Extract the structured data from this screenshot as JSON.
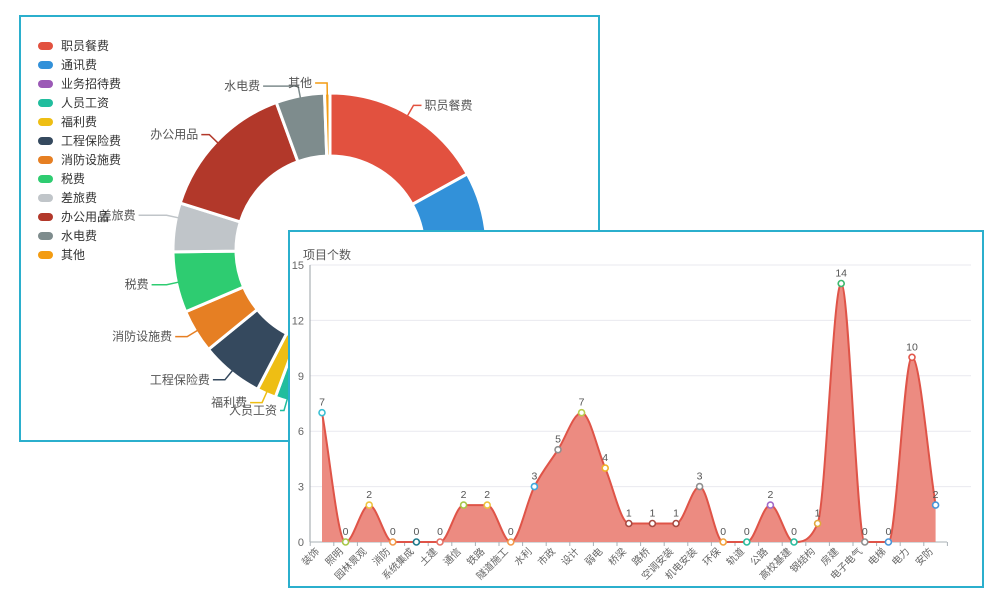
{
  "ui": {
    "background": "#ffffff",
    "panel_border_color": "#2bafcd",
    "panel_background": "#ffffff"
  },
  "back_panel": {
    "legend": [
      {
        "label": "职员餐费",
        "color": "#e2513f"
      },
      {
        "label": "通讯费",
        "color": "#3291d9"
      },
      {
        "label": "业务招待费",
        "color": "#9b59b6"
      },
      {
        "label": "人员工资",
        "color": "#21bd9e"
      },
      {
        "label": "福利费",
        "color": "#eebe14"
      },
      {
        "label": "工程保险费",
        "color": "#35495e"
      },
      {
        "label": "消防设施费",
        "color": "#e67f23"
      },
      {
        "label": "税费",
        "color": "#2ecc71"
      },
      {
        "label": "差旅费",
        "color": "#c0c5c9"
      },
      {
        "label": "办公用品",
        "color": "#b2382a"
      },
      {
        "label": "水电费",
        "color": "#7e8c8d"
      },
      {
        "label": "其他",
        "color": "#f39c12"
      }
    ],
    "donut_segments": [
      {
        "label": "职员餐费",
        "color": "#e2513f",
        "start": 0,
        "end": 61,
        "callout": {
          "angle": 30,
          "hlen": 8
        }
      },
      {
        "label": "通讯费",
        "color": "#3291d9",
        "start": 61,
        "end": 110,
        "callout": null
      },
      {
        "label": "业务招待费",
        "color": "#9b59b6",
        "start": 110,
        "end": 118,
        "callout": null
      },
      {
        "label": "人员工资",
        "color": "#21bd9e",
        "start": 118,
        "end": 200.4,
        "callout": {
          "angle": 196,
          "hlen": 4
        }
      },
      {
        "label": "福利费",
        "color": "#eebe14",
        "start": 200.4,
        "end": 207.5,
        "callout": {
          "angle": 204,
          "hlen": 12
        }
      },
      {
        "label": "工程保险费",
        "color": "#35495e",
        "start": 207.5,
        "end": 230.7,
        "callout": {
          "angle": 219,
          "hlen": 12
        }
      },
      {
        "label": "消防设施费",
        "color": "#e67f23",
        "start": 230.7,
        "end": 246.8,
        "callout": {
          "angle": 238.75,
          "hlen": 12
        }
      },
      {
        "label": "税费",
        "color": "#2ecc71",
        "start": 246.8,
        "end": 269.3,
        "callout": {
          "angle": 258,
          "hlen": 15
        }
      },
      {
        "label": "差旅费",
        "color": "#c0c5c9",
        "start": 269.3,
        "end": 287.4,
        "callout": {
          "angle": 282,
          "hlen": 28
        }
      },
      {
        "label": "办公用品",
        "color": "#b2382a",
        "start": 287.4,
        "end": 340,
        "callout": {
          "angle": 313.7,
          "hlen": 8
        }
      },
      {
        "label": "水电费",
        "color": "#7e8c8d",
        "start": 340,
        "end": 358,
        "callout": {
          "angle": 349,
          "hlen": 35
        }
      },
      {
        "label": "其他",
        "color": "#f39c12",
        "start": 358,
        "end": 360,
        "callout": {
          "angle": 359,
          "hlen": 12
        }
      }
    ]
  },
  "front_panel": {
    "title": "项目个数",
    "y_ticks": [
      0,
      3,
      6,
      9,
      12,
      15
    ],
    "area_fill_color": "#ec8b81",
    "line_color": "#df5448",
    "point_colors": [
      "#3bc0d4",
      "#a8c84a",
      "#eec33f",
      "#f2994a",
      "#1f7a8c",
      "#e57368",
      "#a8c84a",
      "#eec33f",
      "#f2994a",
      "#3fa8dd",
      "#8f8f8f",
      "#b8cd4e",
      "#efb32a",
      "#a94a42",
      "#a94a42",
      "#a94a42",
      "#8f8f8f",
      "#f2a13c",
      "#2abd9e",
      "#a26bc9",
      "#2abd9e",
      "#e0a93e",
      "#3cb96e",
      "#8f8f8f",
      "#4a96d8",
      "#e2574b",
      "#4a96d8"
    ]
  },
  "chart_data": [
    {
      "type": "pie",
      "subtype": "donut",
      "title": "",
      "categories": [
        "职员餐费",
        "通讯费",
        "业务招待费",
        "人员工资",
        "福利费",
        "工程保险费",
        "消防设施费",
        "税费",
        "差旅费",
        "办公用品",
        "水电费",
        "其他"
      ],
      "percent_est": [
        16.9,
        13.6,
        2.2,
        22.9,
        2.0,
        6.4,
        4.5,
        6.3,
        5.0,
        14.6,
        5.0,
        0.6
      ],
      "colors": [
        "#e2513f",
        "#3291d9",
        "#9b59b6",
        "#21bd9e",
        "#eebe14",
        "#35495e",
        "#e67f23",
        "#2ecc71",
        "#c0c5c9",
        "#b2382a",
        "#7e8c8d",
        "#f39c12"
      ],
      "legend_position": "left",
      "note": "donut partially occluded by front panel; percents estimated from visible arc angles"
    },
    {
      "type": "area",
      "title": "项目个数",
      "categories": [
        "装饰",
        "照明",
        "园林景观",
        "消防",
        "系统集成",
        "土建",
        "通信",
        "铁路",
        "隧道施工",
        "水利",
        "市政",
        "设计",
        "弱电",
        "桥梁",
        "路桥",
        "空调安装",
        "机电安装",
        "环保",
        "轨道",
        "公路",
        "高校基建",
        "钢结构",
        "房建",
        "电子电气",
        "电梯",
        "电力",
        "安防"
      ],
      "values": [
        7,
        0,
        2,
        0,
        0,
        0,
        2,
        2,
        0,
        3,
        5,
        7,
        4,
        1,
        1,
        1,
        3,
        0,
        0,
        2,
        0,
        1,
        14,
        0,
        0,
        10,
        2
      ],
      "xlabel": "",
      "ylabel": "",
      "ylim": [
        0,
        15
      ],
      "yticks": [
        0,
        3,
        6,
        9,
        12,
        15
      ],
      "grid": true,
      "smooth": true,
      "data_labels": true
    }
  ]
}
